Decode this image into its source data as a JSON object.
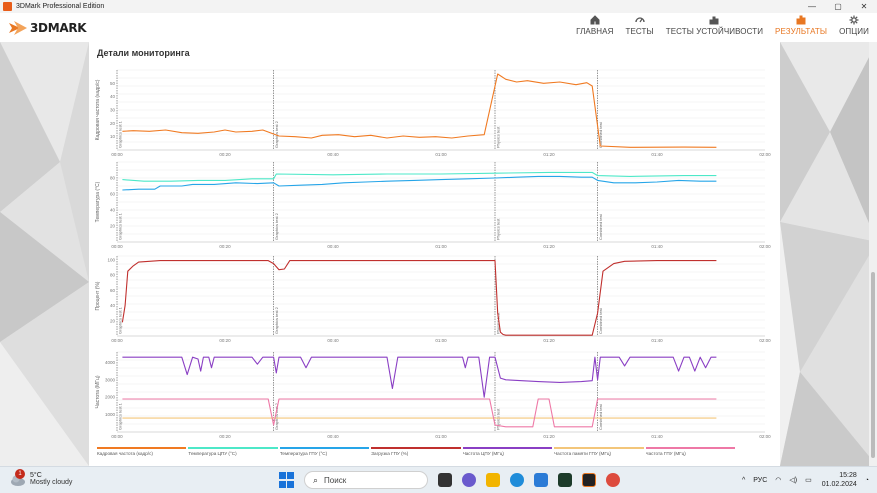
{
  "window": {
    "title": "3DMark Professional Edition",
    "min": "—",
    "max": "▢",
    "close": "✕"
  },
  "brand": {
    "logo_text": "3DMARK"
  },
  "nav": [
    {
      "id": "home",
      "label": "ГЛАВНАЯ",
      "icon": "home-icon",
      "active": false
    },
    {
      "id": "tests",
      "label": "ТЕСТЫ",
      "icon": "gauge-icon",
      "active": false
    },
    {
      "id": "stress",
      "label": "ТЕСТЫ УСТОЙЧИВОСТИ",
      "icon": "stress-icon",
      "active": false
    },
    {
      "id": "results",
      "label": "РЕЗУЛЬТАТЫ",
      "icon": "bar-chart-icon",
      "active": true
    },
    {
      "id": "options",
      "label": "ОПЦИИ",
      "icon": "gear-icon",
      "active": false
    }
  ],
  "panel": {
    "title": "Детали мониторинга"
  },
  "colors": {
    "accent": "#e87722",
    "fps": "#f07a22",
    "cpu_temp": "#4de8c8",
    "gpu_temp": "#26a5e8",
    "gpu_load": "#c0302e",
    "cpu_clock": "#8a3fc4",
    "gpu_mem_clock": "#f3c67a",
    "gpu_clock": "#ee78a6"
  },
  "chart_data": {
    "type": "line",
    "x_ticks": [
      "00:00",
      "00:20",
      "00:40",
      "01:00",
      "01:20",
      "01:40",
      "02:00"
    ],
    "xlim_seconds": [
      0,
      120
    ],
    "segment_markers": [
      {
        "label": "Graphics test 1",
        "t": 0
      },
      {
        "label": "Graphics test 2",
        "t": 29
      },
      {
        "label": "Physics test",
        "t": 70
      },
      {
        "label": "Combined test",
        "t": 89
      }
    ],
    "panels": [
      {
        "ylabel": "Кадровая частота (кадр/с)",
        "ylim": [
          0,
          60
        ],
        "y_ticks": [
          "10",
          "20",
          "30",
          "40",
          "50"
        ],
        "series": [
          {
            "name": "Кадровая частота (кадр/с)",
            "color_key": "fps",
            "points": [
              [
                1,
                14
              ],
              [
                3,
                14.5
              ],
              [
                6,
                14
              ],
              [
                9,
                15
              ],
              [
                12,
                13
              ],
              [
                15,
                12.5
              ],
              [
                18,
                13.5
              ],
              [
                20,
                15
              ],
              [
                22,
                13.5
              ],
              [
                25,
                14
              ],
              [
                27,
                15
              ],
              [
                30,
                10.5
              ],
              [
                33,
                10
              ],
              [
                36,
                9
              ],
              [
                38,
                11
              ],
              [
                41,
                11.5
              ],
              [
                44,
                10
              ],
              [
                47,
                11
              ],
              [
                50,
                9
              ],
              [
                53,
                10.5
              ],
              [
                56,
                9.5
              ],
              [
                59,
                10
              ],
              [
                62,
                9
              ],
              [
                65,
                10.5
              ],
              [
                68,
                11.5
              ],
              [
                70.5,
                57
              ],
              [
                72,
                53
              ],
              [
                74,
                51
              ],
              [
                76,
                52
              ],
              [
                79,
                50
              ],
              [
                82,
                51
              ],
              [
                85,
                49
              ],
              [
                87,
                50.5
              ],
              [
                88,
                48
              ],
              [
                89.5,
                3
              ],
              [
                95,
                2
              ],
              [
                105,
                2.2
              ],
              [
                111,
                2
              ]
            ]
          }
        ]
      },
      {
        "ylabel": "Температура (°C)",
        "ylim": [
          0,
          100
        ],
        "y_ticks": [
          "20",
          "40",
          "60",
          "80"
        ],
        "series": [
          {
            "name": "Температура ЦПУ (°C)",
            "color_key": "cpu_temp",
            "points": [
              [
                1,
                78
              ],
              [
                5,
                76
              ],
              [
                10,
                76
              ],
              [
                15,
                77
              ],
              [
                20,
                77
              ],
              [
                25,
                79
              ],
              [
                29,
                79
              ],
              [
                29.5,
                85
              ],
              [
                40,
                84
              ],
              [
                50,
                85
              ],
              [
                60,
                85
              ],
              [
                70,
                86
              ],
              [
                80,
                87
              ],
              [
                88,
                87
              ],
              [
                89,
                83
              ],
              [
                95,
                82
              ],
              [
                105,
                83
              ],
              [
                111,
                83
              ]
            ]
          },
          {
            "name": "Температура ГПУ (°C)",
            "color_key": "gpu_temp",
            "points": [
              [
                1,
                65
              ],
              [
                4,
                66
              ],
              [
                7,
                66
              ],
              [
                8,
                70
              ],
              [
                12,
                70
              ],
              [
                14,
                72
              ],
              [
                18,
                72
              ],
              [
                22,
                74
              ],
              [
                26,
                73
              ],
              [
                29,
                74
              ],
              [
                30,
                70
              ],
              [
                34,
                71
              ],
              [
                38,
                72
              ],
              [
                42,
                74
              ],
              [
                46,
                75
              ],
              [
                50,
                76
              ],
              [
                55,
                77
              ],
              [
                60,
                78
              ],
              [
                65,
                79
              ],
              [
                70,
                80
              ],
              [
                74,
                81
              ],
              [
                78,
                82
              ],
              [
                82,
                82
              ],
              [
                86,
                81
              ],
              [
                88,
                81
              ],
              [
                89,
                77
              ],
              [
                92,
                74
              ],
              [
                96,
                74
              ],
              [
                100,
                75
              ],
              [
                104,
                77
              ],
              [
                108,
                76
              ],
              [
                111,
                76
              ]
            ]
          }
        ]
      },
      {
        "ylabel": "Процент (%)",
        "ylim": [
          0,
          105
        ],
        "y_ticks": [
          "20",
          "40",
          "60",
          "80",
          "100"
        ],
        "series": [
          {
            "name": "Загрузка ГПУ (%)",
            "color_key": "gpu_load",
            "points": [
              [
                1,
                18
              ],
              [
                1.5,
                40
              ],
              [
                2,
                85
              ],
              [
                3,
                92
              ],
              [
                4,
                97
              ],
              [
                6,
                98
              ],
              [
                8,
                99
              ],
              [
                10,
                99
              ],
              [
                20,
                99
              ],
              [
                28,
                99
              ],
              [
                29,
                95
              ],
              [
                30,
                87
              ],
              [
                31,
                88
              ],
              [
                32,
                99
              ],
              [
                40,
                99
              ],
              [
                50,
                99
              ],
              [
                60,
                99
              ],
              [
                70,
                99
              ],
              [
                70.5,
                30
              ],
              [
                71,
                5
              ],
              [
                71.5,
                2
              ],
              [
                72,
                1
              ],
              [
                80,
                1
              ],
              [
                88,
                1
              ],
              [
                89,
                30
              ],
              [
                90,
                85
              ],
              [
                92,
                95
              ],
              [
                94,
                98
              ],
              [
                100,
                99
              ],
              [
                111,
                99
              ]
            ]
          }
        ]
      },
      {
        "ylabel": "Частота (МГц)",
        "ylim": [
          0,
          4600
        ],
        "y_ticks": [
          "1000",
          "2000",
          "3000",
          "4000"
        ],
        "series": [
          {
            "name": "Частота ЦПУ (МГц)",
            "color_key": "cpu_clock",
            "points": [
              [
                1,
                4300
              ],
              [
                12,
                4300
              ],
              [
                13,
                3300
              ],
              [
                14,
                4300
              ],
              [
                15,
                4200
              ],
              [
                15.5,
                3500
              ],
              [
                16,
                4300
              ],
              [
                17,
                4300
              ],
              [
                17.5,
                3700
              ],
              [
                18,
                4300
              ],
              [
                25,
                4300
              ],
              [
                26,
                3900
              ],
              [
                27,
                4300
              ],
              [
                29,
                4300
              ],
              [
                29.5,
                3400
              ],
              [
                30,
                4300
              ],
              [
                34,
                4300
              ],
              [
                35,
                3700
              ],
              [
                36,
                4300
              ],
              [
                50,
                4300
              ],
              [
                51,
                2500
              ],
              [
                52,
                4300
              ],
              [
                64,
                4300
              ],
              [
                64.5,
                3700
              ],
              [
                65,
                4300
              ],
              [
                67,
                4300
              ],
              [
                68,
                2000
              ],
              [
                69,
                4300
              ],
              [
                70,
                4300
              ],
              [
                71,
                3100
              ],
              [
                72,
                3000
              ],
              [
                78,
                2900
              ],
              [
                82,
                2850
              ],
              [
                86,
                2900
              ],
              [
                88,
                2950
              ],
              [
                88.5,
                4300
              ],
              [
                89,
                3000
              ],
              [
                89.5,
                4300
              ],
              [
                93,
                4300
              ],
              [
                94,
                3800
              ],
              [
                95,
                4300
              ],
              [
                103,
                4300
              ],
              [
                104,
                3500
              ],
              [
                105,
                4300
              ],
              [
                106,
                4300
              ],
              [
                107,
                3500
              ],
              [
                108,
                4300
              ],
              [
                109,
                3700
              ],
              [
                110,
                4300
              ],
              [
                111,
                4300
              ]
            ]
          },
          {
            "name": "Частота памяти ГПУ (МГц)",
            "color_key": "gpu_mem_clock",
            "points": [
              [
                1,
                800
              ],
              [
                111,
                800
              ]
            ]
          },
          {
            "name": "Частота ГПУ (МГц)",
            "color_key": "gpu_clock",
            "points": [
              [
                1,
                1900
              ],
              [
                28,
                1900
              ],
              [
                29,
                400
              ],
              [
                30,
                1900
              ],
              [
                68,
                1900
              ],
              [
                69,
                1900
              ],
              [
                70,
                400
              ],
              [
                72,
                300
              ],
              [
                77,
                300
              ],
              [
                78,
                1900
              ],
              [
                80,
                1900
              ],
              [
                81,
                300
              ],
              [
                88,
                300
              ],
              [
                89,
                1900
              ],
              [
                111,
                1900
              ]
            ]
          }
        ]
      }
    ]
  },
  "legend": [
    {
      "label": "Кадровая частота (кадр/с)",
      "color_key": "fps"
    },
    {
      "label": "Температура ЦПУ (°C)",
      "color_key": "cpu_temp"
    },
    {
      "label": "Температура ГПУ (°C)",
      "color_key": "gpu_temp"
    },
    {
      "label": "Загрузка ГПУ (%)",
      "color_key": "gpu_load"
    },
    {
      "label": "Частота ЦПУ (МГц)",
      "color_key": "cpu_clock"
    },
    {
      "label": "Частота памяти ГПУ (МГц)",
      "color_key": "gpu_mem_clock"
    },
    {
      "label": "Частота ГПУ (МГц)",
      "color_key": "gpu_clock"
    }
  ],
  "taskbar": {
    "weather_badge": "1",
    "weather_temp": "5°C",
    "weather_desc": "Mostly cloudy",
    "search_placeholder": "Поиск",
    "language": "РУС",
    "time": "15:28",
    "date": "01.02.2024"
  }
}
